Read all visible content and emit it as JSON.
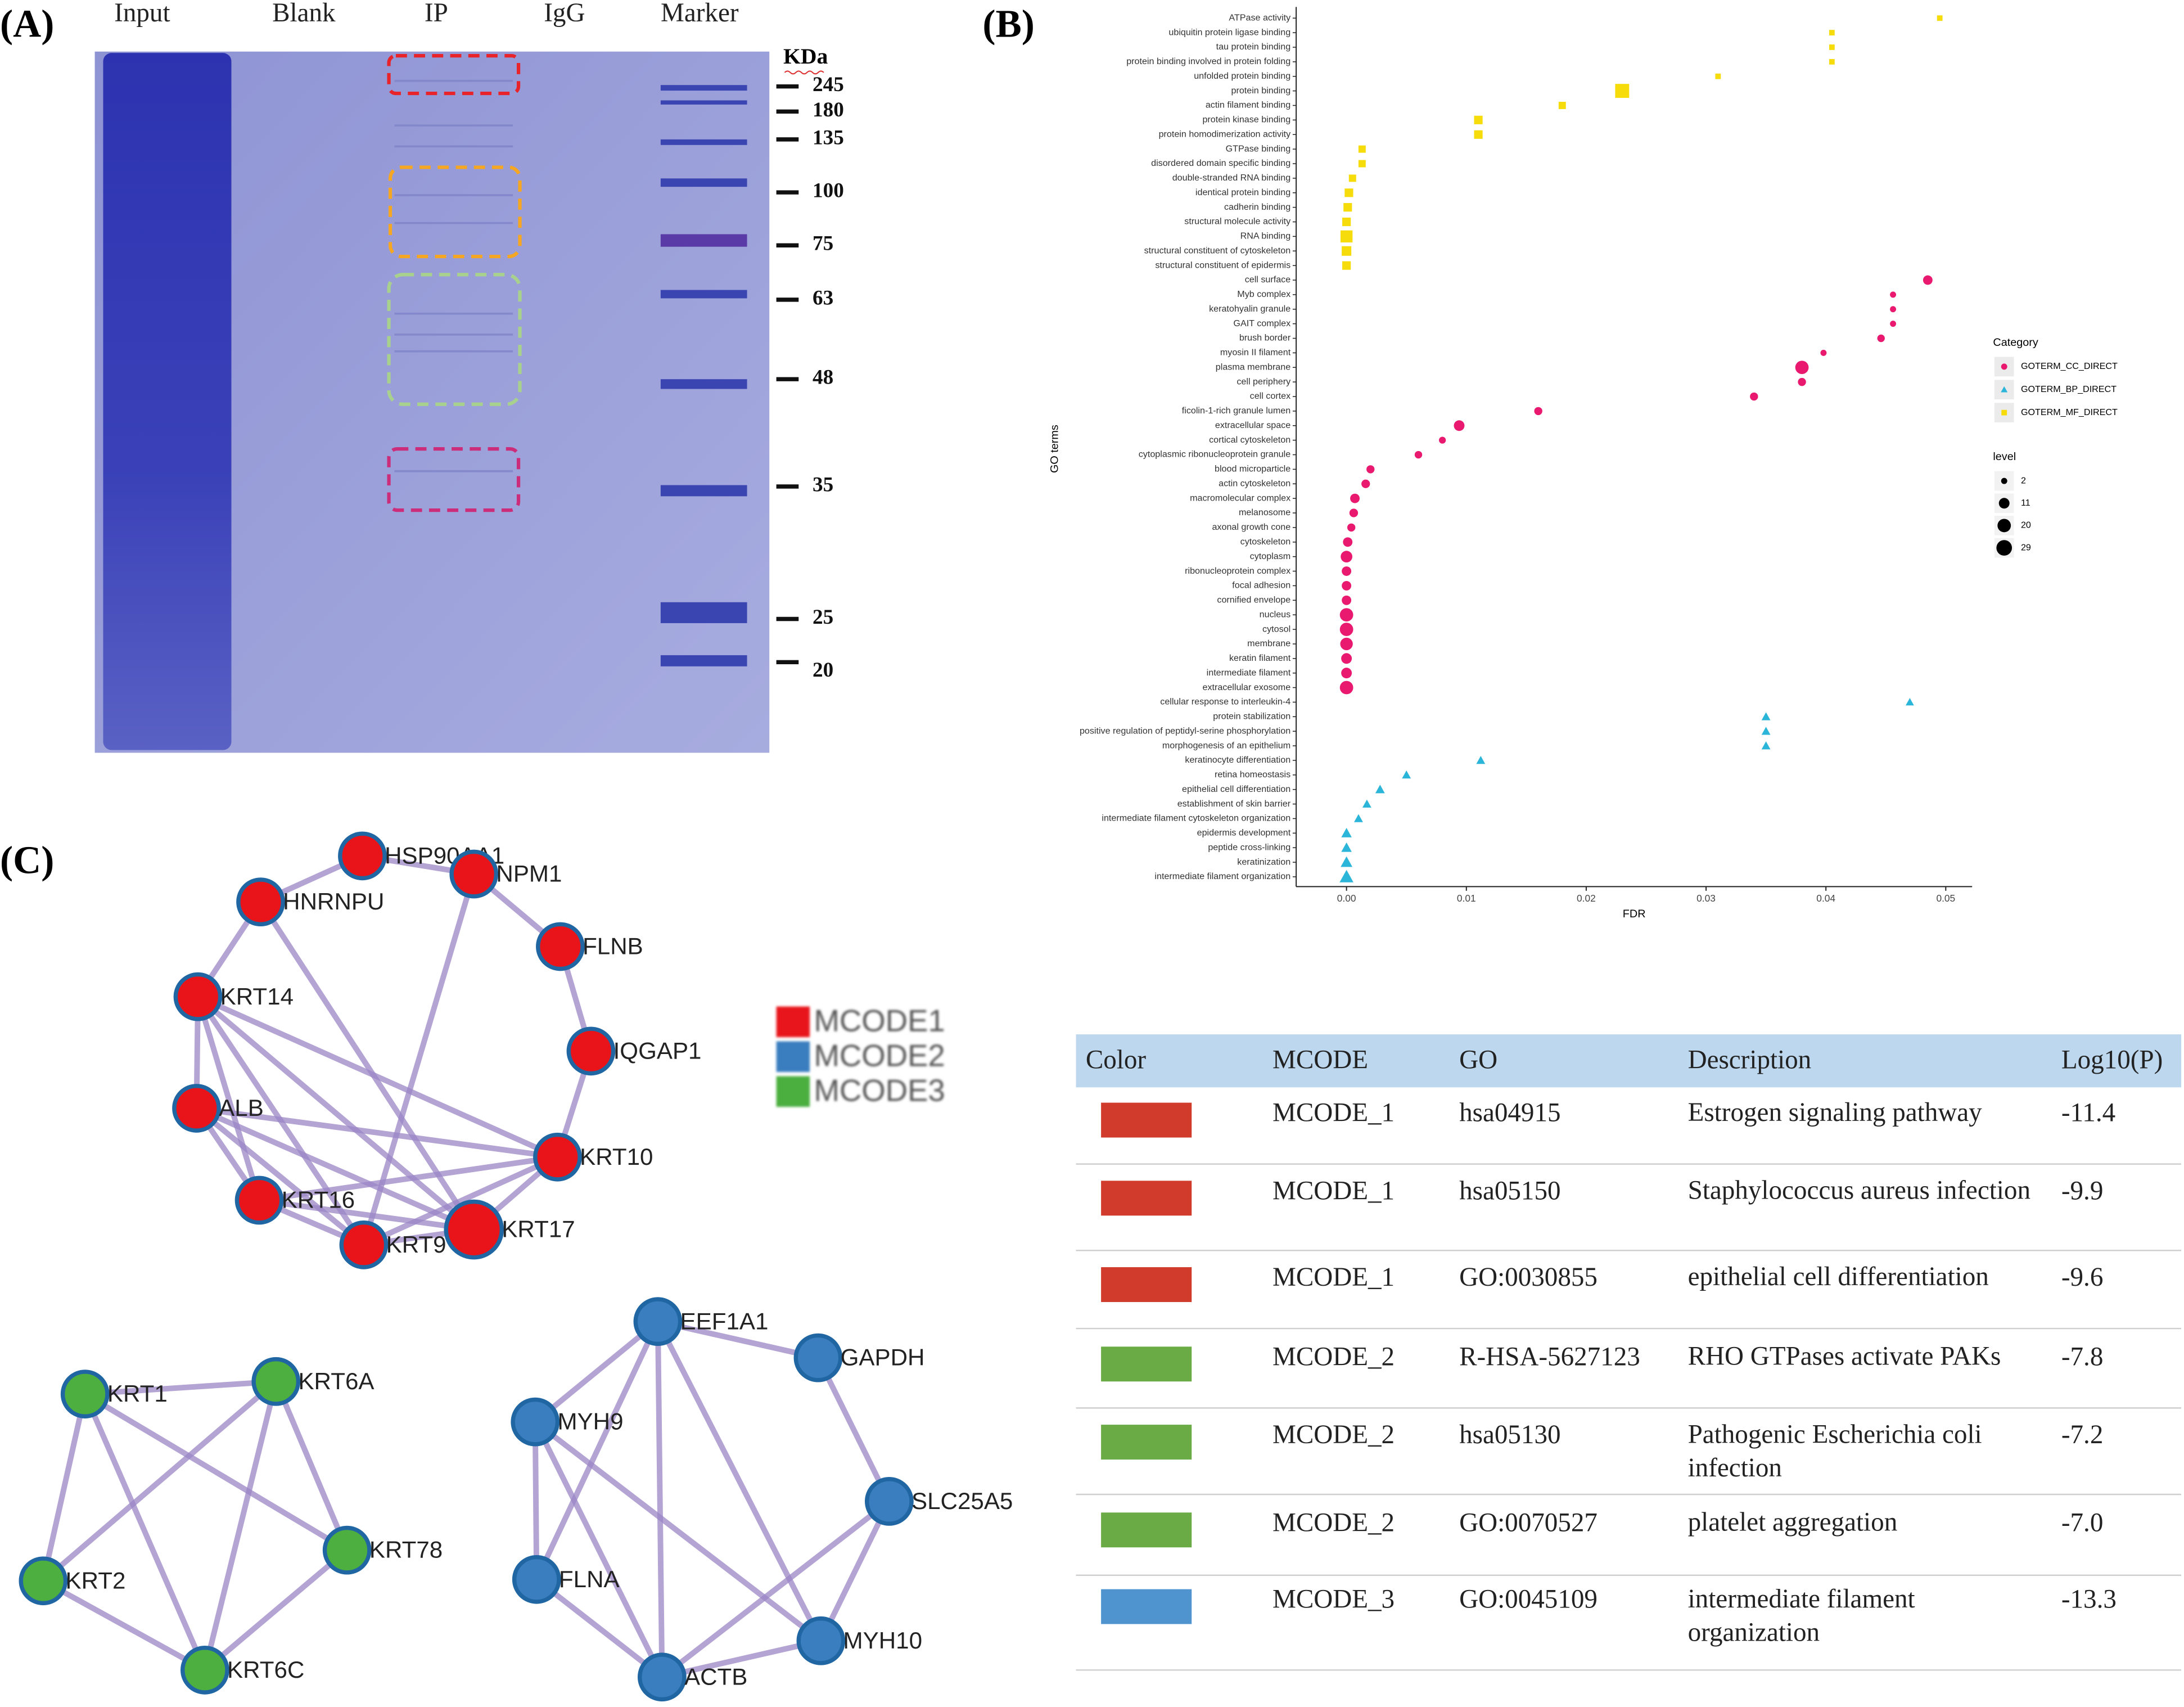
{
  "gel": {
    "panel_label": "(A)",
    "lanes": [
      "Input",
      "Blank",
      "IP",
      "IgG",
      "Marker"
    ],
    "unit": "KDa",
    "markers": [
      245,
      180,
      135,
      100,
      75,
      63,
      48,
      35,
      25,
      20
    ]
  },
  "chart_data": {
    "type": "scatter",
    "panel_label": "(B)",
    "x_label": "FDR",
    "y_label": "GO terms",
    "xlim": [
      -0.0042,
      0.0522
    ],
    "xticks": [
      {
        "value": 0,
        "label": "0.00"
      },
      {
        "value": 0.01,
        "label": "0.01"
      },
      {
        "value": 0.02,
        "label": "0.02"
      },
      {
        "value": 0.03,
        "label": "0.03"
      },
      {
        "value": 0.04,
        "label": "0.04"
      },
      {
        "value": 0.05,
        "label": "0.05"
      }
    ],
    "legend_title": "Category",
    "legend_position": "right",
    "series": [
      {
        "name": "GOTERM_CC_DIRECT",
        "color": "#e8196e",
        "shape": "circle",
        "categories": [
          "cell surface",
          "Myb complex",
          "keratohyalin granule",
          "GAIT complex",
          "brush border",
          "myosin II filament",
          "plasma membrane",
          "cell periphery",
          "cell cortex",
          "ficolin-1-rich granule lumen",
          "extracellular space",
          "cortical cytoskeleton",
          "cytoplasmic ribonucleoprotein granule",
          "blood microparticle",
          "actin cytoskeleton",
          "macromolecular complex",
          "melanosome",
          "axonal growth cone",
          "cytoskeleton",
          "cytoplasm",
          "ribonucleoprotein complex",
          "focal adhesion",
          "cornified envelope",
          "nucleus",
          "cytosol",
          "membrane",
          "keratin filament",
          "intermediate filament",
          "extracellular exosome"
        ],
        "values": [
          0.0485,
          0.0456,
          0.0456,
          0.0456,
          0.0446,
          0.0398,
          0.038,
          0.038,
          0.034,
          0.016,
          0.0094,
          0.008,
          0.006,
          0.002,
          0.0016,
          0.0007,
          0.0006,
          0.0004,
          0.0001,
          0,
          0,
          0,
          0,
          0,
          0,
          0,
          0,
          0,
          0
        ],
        "sizes": [
          8,
          2,
          2,
          2,
          4,
          2,
          20,
          5,
          5,
          5,
          11,
          3,
          4,
          5,
          6,
          8,
          6,
          5,
          8,
          14,
          8,
          8,
          8,
          20,
          20,
          17,
          11,
          11,
          20
        ]
      },
      {
        "name": "GOTERM_BP_DIRECT",
        "color": "#2bb5d9",
        "shape": "triangle",
        "categories": [
          "cellular response to interleukin-4",
          "protein stabilization",
          "positive regulation of peptidyl-serine phosphorylation",
          "morphogenesis of an epithelium",
          "keratinocyte differentiation",
          "retina homeostasis",
          "epithelial cell differentiation",
          "establishment of skin barrier",
          "intermediate filament cytoskeleton organization",
          "epidermis development",
          "peptide cross-linking",
          "keratinization",
          "intermediate filament organization"
        ],
        "values": [
          0.047,
          0.035,
          0.035,
          0.035,
          0.0112,
          0.005,
          0.0028,
          0.0017,
          0.001,
          0,
          0,
          0,
          0
        ],
        "sizes": [
          4,
          5,
          5,
          5,
          5,
          5,
          6,
          5,
          5,
          8,
          8,
          11,
          17
        ]
      },
      {
        "name": "GOTERM_MF_DIRECT",
        "color": "#f5dc0a",
        "shape": "square",
        "categories": [
          "ATPase activity",
          "ubiquitin protein ligase binding",
          "tau protein binding",
          "protein binding involved in protein folding",
          "unfolded protein binding",
          "protein binding",
          "actin filament binding",
          "protein kinase binding",
          "protein homodimerization activity",
          "GTPase binding",
          "disordered domain specific binding",
          "double-stranded RNA binding",
          "identical protein binding",
          "cadherin binding",
          "structural molecule activity",
          "RNA binding",
          "structural constituent of cytoskeleton",
          "structural constituent of epidermis"
        ],
        "values": [
          0.0495,
          0.0405,
          0.0405,
          0.0405,
          0.031,
          0.023,
          0.018,
          0.011,
          0.011,
          0.0013,
          0.0013,
          0.0005,
          0.0002,
          0.0001,
          0,
          0,
          0,
          0
        ],
        "sizes": [
          2,
          2,
          2,
          2,
          2,
          29,
          5,
          8,
          8,
          5,
          5,
          5,
          8,
          8,
          8,
          20,
          11,
          8
        ]
      }
    ],
    "size_legend": {
      "title": "level",
      "values": [
        2,
        11,
        20,
        29
      ]
    }
  },
  "network": {
    "panel_label": "(C)",
    "legend": [
      {
        "name": "MCODE1",
        "color": "#e8141a"
      },
      {
        "name": "MCODE2",
        "color": "#3a7ebf"
      },
      {
        "name": "MCODE3",
        "color": "#4caf40"
      }
    ],
    "clusters": [
      {
        "color": "#e8141a",
        "nodes": [
          "HSP90AA1",
          "NPM1",
          "HNRNPU",
          "FLNB",
          "KRT14",
          "IQGAP1",
          "ALB",
          "KRT10",
          "KRT16",
          "KRT9",
          "KRT17"
        ]
      },
      {
        "color": "#4caf40",
        "nodes": [
          "KRT1",
          "KRT6A",
          "KRT78",
          "KRT2",
          "KRT6C"
        ]
      },
      {
        "color": "#3a7ebf",
        "nodes": [
          "EEF1A1",
          "GAPDH",
          "MYH9",
          "SLC25A5",
          "FLNA",
          "MYH10",
          "ACTB"
        ]
      }
    ]
  },
  "table": {
    "header": [
      "Color",
      "MCODE",
      "GO",
      "Description",
      "Log10(P)"
    ],
    "rows": [
      {
        "color": "#d13b2b",
        "cells": [
          "MCODE_1",
          "hsa04915",
          "Estrogen signaling pathway",
          "-11.4"
        ]
      },
      {
        "color": "#d13b2b",
        "cells": [
          "MCODE_1",
          "hsa05150",
          "Staphylococcus aureus infection",
          "-9.9"
        ]
      },
      {
        "color": "#d13b2b",
        "cells": [
          "MCODE_1",
          "GO:0030855",
          "epithelial cell differentiation",
          "-9.6"
        ]
      },
      {
        "color": "#6aab45",
        "cells": [
          "MCODE_2",
          "R-HSA-5627123",
          "RHO GTPases activate PAKs",
          "-7.8"
        ]
      },
      {
        "color": "#6aab45",
        "cells": [
          "MCODE_2",
          "hsa05130",
          "Pathogenic Escherichia coli infection",
          "-7.2"
        ]
      },
      {
        "color": "#6aab45",
        "cells": [
          "MCODE_2",
          "GO:0070527",
          "platelet aggregation",
          "-7.0"
        ]
      },
      {
        "color": "#5094cf",
        "cells": [
          "MCODE_3",
          "GO:0045109",
          "intermediate filament organization",
          "-13.3"
        ]
      }
    ]
  }
}
